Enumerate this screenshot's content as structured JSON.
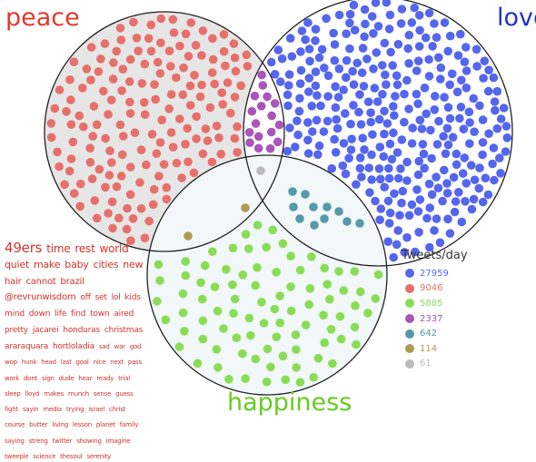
{
  "labels": {
    "peace": {
      "text": "peace",
      "color": "#e03a2f"
    },
    "love": {
      "text": "love",
      "color": "#2233cc"
    },
    "happiness": {
      "text": "happiness",
      "color": "#66cc22"
    }
  },
  "legend": {
    "title": "Tweets/day",
    "items": [
      {
        "value": "27959",
        "color": "#5566ee",
        "set": "love"
      },
      {
        "value": "9046",
        "color": "#e8706a",
        "set": "peace"
      },
      {
        "value": "5885",
        "color": "#88dd55",
        "set": "happiness"
      },
      {
        "value": "2337",
        "color": "#aa55bb",
        "set": "peace+love"
      },
      {
        "value": "642",
        "color": "#5599aa",
        "set": "love+happiness"
      },
      {
        "value": "114",
        "color": "#b09a50",
        "set": "peace+happiness"
      },
      {
        "value": "61",
        "color": "#bbbbbb",
        "set": "peace+love+happiness"
      }
    ]
  },
  "word_cloud": {
    "color": "#d0342c",
    "words": [
      {
        "text": "49ers",
        "size": 15
      },
      {
        "text": "time",
        "size": 12
      },
      {
        "text": "rest",
        "size": 12
      },
      {
        "text": "world",
        "size": 12
      },
      {
        "text": "quiet",
        "size": 11
      },
      {
        "text": "make",
        "size": 11
      },
      {
        "text": "baby",
        "size": 11
      },
      {
        "text": "cities",
        "size": 11
      },
      {
        "text": "new",
        "size": 11
      },
      {
        "text": "hair",
        "size": 10
      },
      {
        "text": "cannot",
        "size": 10
      },
      {
        "text": "brazil",
        "size": 10
      },
      {
        "text": "@revrunwisdom",
        "size": 10
      },
      {
        "text": "off",
        "size": 9
      },
      {
        "text": "set",
        "size": 9
      },
      {
        "text": "lol",
        "size": 9
      },
      {
        "text": "kids",
        "size": 9
      },
      {
        "text": "mind",
        "size": 9
      },
      {
        "text": "down",
        "size": 9
      },
      {
        "text": "life",
        "size": 9
      },
      {
        "text": "find",
        "size": 9
      },
      {
        "text": "town",
        "size": 9
      },
      {
        "text": "aired",
        "size": 9
      },
      {
        "text": "pretty",
        "size": 9
      },
      {
        "text": "jacarei",
        "size": 9
      },
      {
        "text": "honduras",
        "size": 9
      },
      {
        "text": "christmas",
        "size": 9
      },
      {
        "text": "araraquara",
        "size": 9
      },
      {
        "text": "hortloladia",
        "size": 9
      },
      {
        "text": "sad",
        "size": 7
      },
      {
        "text": "war",
        "size": 7
      },
      {
        "text": "god",
        "size": 7
      },
      {
        "text": "wop",
        "size": 7
      },
      {
        "text": "hunk",
        "size": 7
      },
      {
        "text": "head",
        "size": 7
      },
      {
        "text": "last",
        "size": 7
      },
      {
        "text": "goal",
        "size": 7
      },
      {
        "text": "nice",
        "size": 7
      },
      {
        "text": "next",
        "size": 7
      },
      {
        "text": "pass",
        "size": 7
      },
      {
        "text": "work",
        "size": 7
      },
      {
        "text": "dont",
        "size": 7
      },
      {
        "text": "sign",
        "size": 7
      },
      {
        "text": "dude",
        "size": 7
      },
      {
        "text": "hear",
        "size": 7
      },
      {
        "text": "ready",
        "size": 7
      },
      {
        "text": "trial",
        "size": 7
      },
      {
        "text": "sleep",
        "size": 7
      },
      {
        "text": "lloyd",
        "size": 7
      },
      {
        "text": "makes",
        "size": 7
      },
      {
        "text": "munch",
        "size": 7
      },
      {
        "text": "sense",
        "size": 7
      },
      {
        "text": "guess",
        "size": 7
      },
      {
        "text": "fight",
        "size": 7
      },
      {
        "text": "sayin",
        "size": 7
      },
      {
        "text": "media",
        "size": 7
      },
      {
        "text": "trying",
        "size": 7
      },
      {
        "text": "israel",
        "size": 7
      },
      {
        "text": "christ",
        "size": 7
      },
      {
        "text": "course",
        "size": 7
      },
      {
        "text": "butter",
        "size": 7
      },
      {
        "text": "living",
        "size": 7
      },
      {
        "text": "lesson",
        "size": 7
      },
      {
        "text": "planet",
        "size": 7
      },
      {
        "text": "family",
        "size": 7
      },
      {
        "text": "saying",
        "size": 7
      },
      {
        "text": "streng",
        "size": 7
      },
      {
        "text": "twitter",
        "size": 7
      },
      {
        "text": "showing",
        "size": 7
      },
      {
        "text": "imagine",
        "size": 7
      },
      {
        "text": "tweeple",
        "size": 7
      },
      {
        "text": "science",
        "size": 7
      },
      {
        "text": "thesoul",
        "size": 7
      },
      {
        "text": "serenity",
        "size": 7
      }
    ]
  },
  "regions": [
    {
      "name": "peace-only",
      "count": 9046,
      "dots_shown": 165
    },
    {
      "name": "love-only",
      "count": 27959,
      "dots_shown": 420
    },
    {
      "name": "happiness-only",
      "count": 5885,
      "dots_shown": 160
    },
    {
      "name": "peace-love",
      "count": 2337,
      "dots_shown": 28
    },
    {
      "name": "love-happiness",
      "count": 642,
      "dots_shown": 11
    },
    {
      "name": "peace-happiness",
      "count": 114,
      "dots_shown": 2
    },
    {
      "name": "all-three",
      "count": 61,
      "dots_shown": 1
    }
  ]
}
